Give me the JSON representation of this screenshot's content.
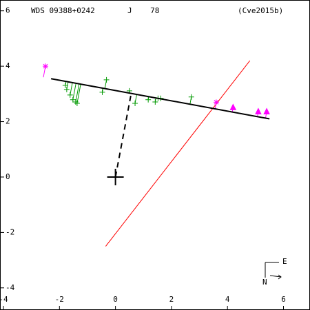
{
  "chart_data": {
    "type": "scatter",
    "title": "WDS 09388+0242",
    "subtitle": "J    78",
    "reference": "(Cve2015b)",
    "xlim": [
      -4,
      7.07
    ],
    "ylim": [
      -4.8,
      6.39
    ],
    "xticks": [
      -4,
      -2,
      0,
      2,
      4,
      6
    ],
    "yticks": [
      -4,
      -2,
      0,
      2,
      4,
      6
    ],
    "fit_line": {
      "color": "#000000",
      "x": [
        -2.3,
        5.5
      ],
      "y": [
        3.55,
        2.1
      ]
    },
    "node_line": {
      "color": "#ff0000",
      "x": [
        -0.35,
        4.8
      ],
      "y": [
        -2.5,
        4.2
      ]
    },
    "periastron_line": {
      "color": "#000000",
      "x": [
        0,
        0.55
      ],
      "y": [
        0,
        2.95
      ]
    },
    "primary": {
      "x": 0,
      "y": 0
    },
    "series": [
      {
        "marker": "plus",
        "color": "#009900",
        "x": [
          -1.79,
          -1.74,
          -1.62,
          -1.52,
          -1.42,
          -1.37,
          -0.47,
          -0.32,
          0.5,
          0.7,
          1.17,
          1.42,
          1.52,
          1.62,
          2.71
        ],
        "values": [
          3.31,
          3.16,
          2.96,
          2.79,
          2.71,
          2.66,
          3.06,
          3.51,
          3.11,
          2.66,
          2.79,
          2.71,
          2.84,
          2.84,
          2.89
        ]
      },
      {
        "marker": "asterisk",
        "color": "#ff00ff",
        "x": [
          -2.5,
          3.6
        ],
        "values": [
          4.0,
          2.7
        ]
      },
      {
        "marker": "triangle",
        "color": "#ff00ff",
        "x": [
          4.2,
          5.1,
          5.4
        ],
        "values": [
          2.5,
          2.35,
          2.35
        ]
      }
    ]
  },
  "compass": {
    "east": "E",
    "north": "N"
  }
}
